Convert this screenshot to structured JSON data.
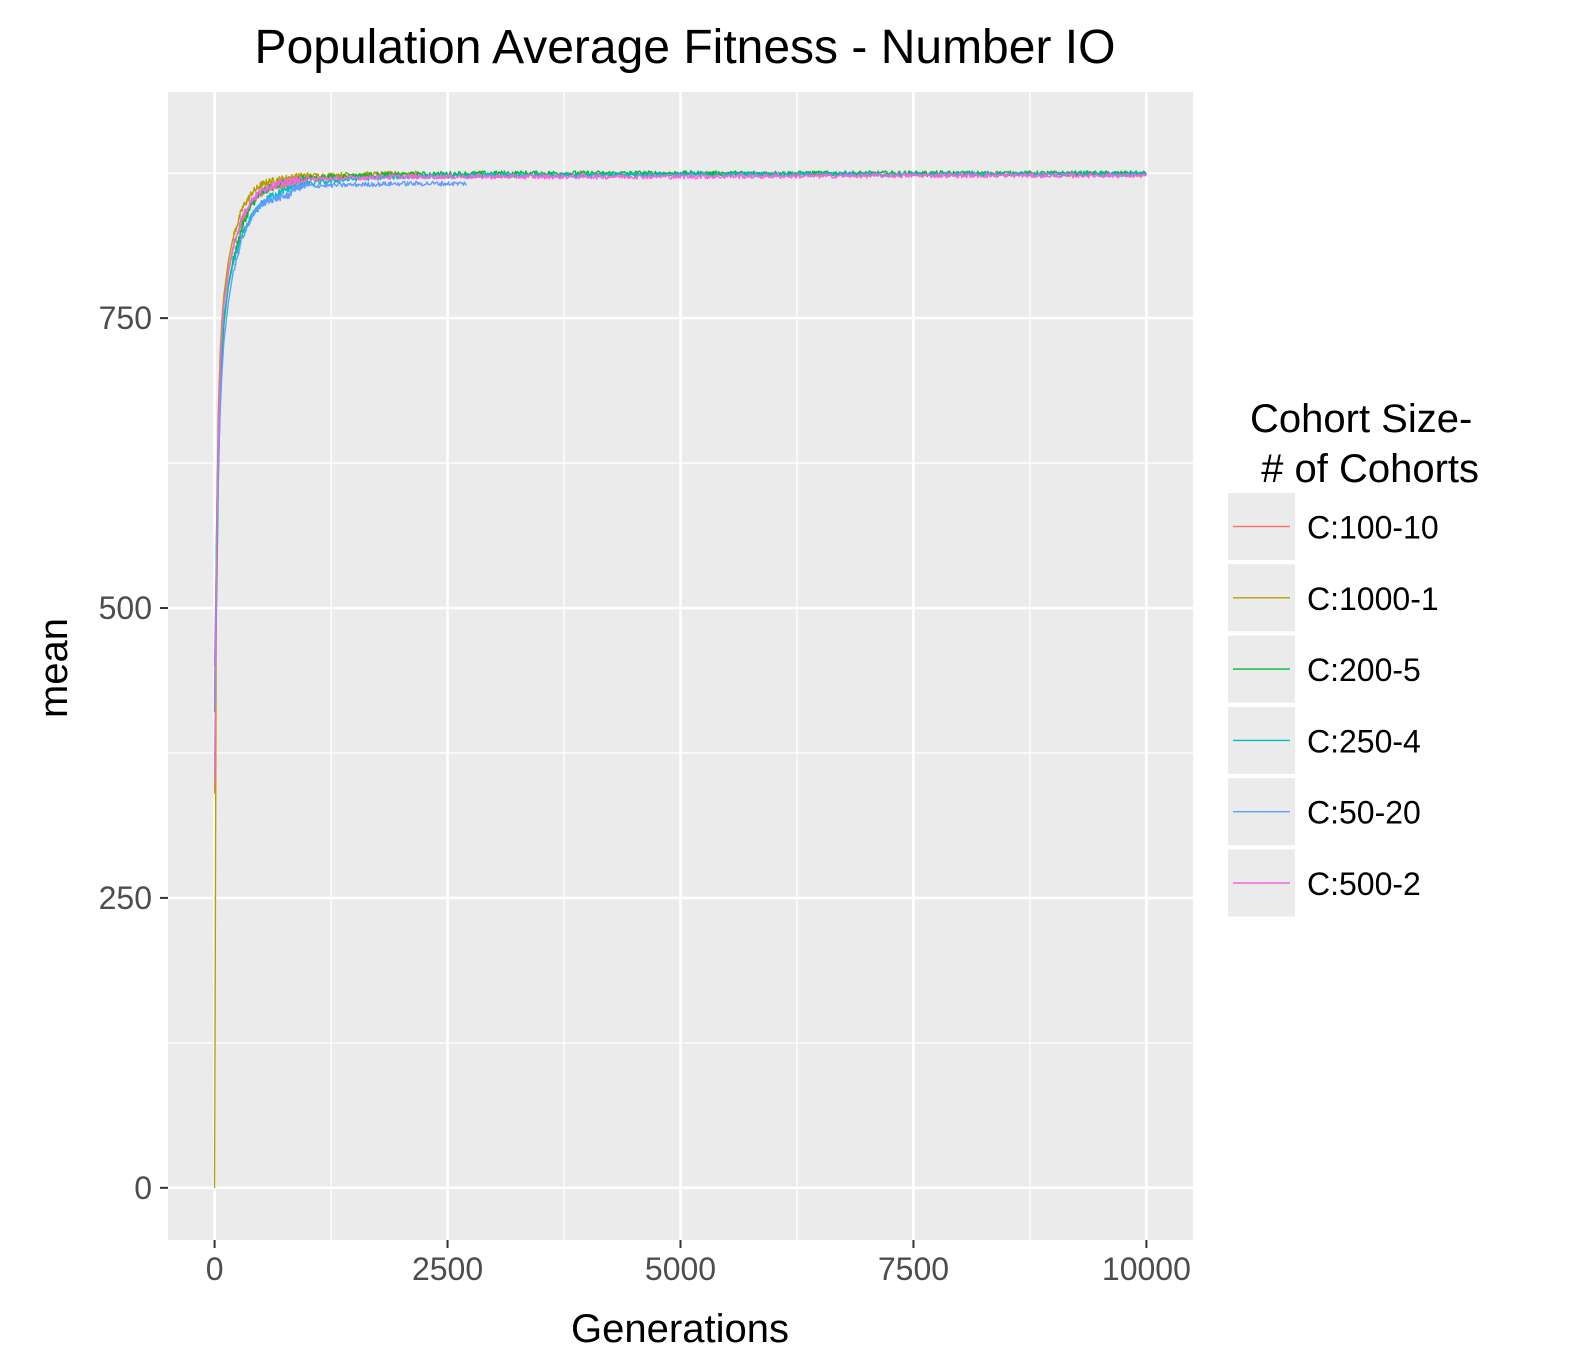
{
  "chart_data": {
    "type": "line",
    "title": "Population Average Fitness - Number IO",
    "xlabel": "Generations",
    "ylabel": "mean",
    "xlim": [
      -500,
      10500
    ],
    "ylim": [
      -45,
      945
    ],
    "x_ticks": [
      0,
      2500,
      5000,
      7500,
      10000
    ],
    "y_ticks": [
      0,
      250,
      500,
      750
    ],
    "x_tick_labels": [
      "0",
      "2500",
      "5000",
      "7500",
      "10000"
    ],
    "y_tick_labels": [
      "0",
      "250",
      "500",
      "750"
    ],
    "grid": true,
    "legend_title_lines": [
      "Cohort Size-",
      " # of Cohorts"
    ],
    "legend_placement": "right",
    "series": [
      {
        "name": "C:100-10",
        "color": "#F8766D",
        "end_x": 10000,
        "x": [
          0,
          20,
          40,
          60,
          80,
          100,
          150,
          200,
          300,
          400,
          500,
          600,
          800,
          1000,
          1500,
          2000,
          3000,
          5000,
          7500,
          10000
        ],
        "y": [
          340,
          520,
          640,
          700,
          735,
          760,
          790,
          810,
          835,
          850,
          858,
          862,
          866,
          869,
          871,
          872,
          873,
          874,
          874,
          874
        ]
      },
      {
        "name": "C:1000-1",
        "color": "#B79F00",
        "end_x": 2200,
        "x": [
          0,
          20,
          40,
          60,
          80,
          100,
          150,
          200,
          300,
          400,
          500,
          600,
          800,
          1000,
          1500,
          2200
        ],
        "y": [
          0,
          560,
          670,
          720,
          750,
          770,
          800,
          820,
          845,
          858,
          865,
          868,
          871,
          873,
          874,
          875
        ]
      },
      {
        "name": "C:200-5",
        "color": "#00BA38",
        "end_x": 10000,
        "x": [
          0,
          20,
          40,
          60,
          80,
          100,
          150,
          200,
          300,
          400,
          500,
          600,
          800,
          1000,
          1500,
          2000,
          3000,
          5000,
          7500,
          10000
        ],
        "y": [
          410,
          500,
          610,
          680,
          720,
          745,
          780,
          800,
          830,
          848,
          858,
          863,
          868,
          871,
          873,
          874,
          875,
          875,
          875,
          875
        ]
      },
      {
        "name": "C:250-4",
        "color": "#00BFC4",
        "end_x": 10000,
        "x": [
          0,
          20,
          40,
          60,
          80,
          100,
          150,
          200,
          300,
          400,
          500,
          600,
          800,
          1000,
          1500,
          2000,
          3000,
          5000,
          7500,
          10000
        ],
        "y": [
          420,
          560,
          650,
          700,
          730,
          750,
          778,
          798,
          822,
          838,
          848,
          855,
          862,
          866,
          870,
          872,
          873,
          874,
          874,
          874
        ]
      },
      {
        "name": "C:50-20",
        "color": "#619CFF",
        "end_x": 2700,
        "x": [
          0,
          20,
          40,
          60,
          80,
          100,
          150,
          200,
          300,
          400,
          500,
          600,
          800,
          850,
          1000,
          1500,
          2000,
          2700
        ],
        "y": [
          450,
          540,
          620,
          670,
          705,
          730,
          765,
          790,
          820,
          838,
          848,
          852,
          856,
          862,
          864,
          865,
          866,
          866
        ]
      },
      {
        "name": "C:500-2",
        "color": "#F564E3",
        "end_x": 10000,
        "x": [
          0,
          20,
          40,
          60,
          80,
          100,
          150,
          200,
          300,
          400,
          500,
          600,
          800,
          1000,
          1500,
          2000,
          3000,
          5000,
          7500,
          10000
        ],
        "y": [
          350,
          530,
          645,
          705,
          740,
          762,
          792,
          812,
          838,
          852,
          860,
          864,
          868,
          870,
          871,
          872,
          872,
          872,
          873,
          873
        ]
      }
    ]
  }
}
